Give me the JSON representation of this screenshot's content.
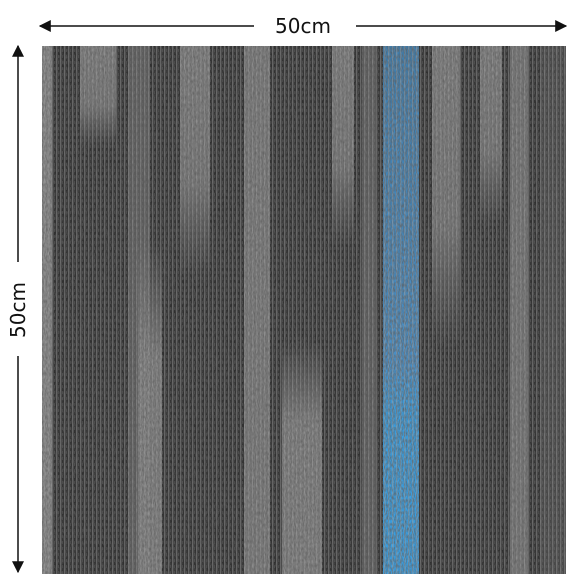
{
  "dimensions": {
    "width_label": "50cm",
    "height_label": "50cm"
  }
}
